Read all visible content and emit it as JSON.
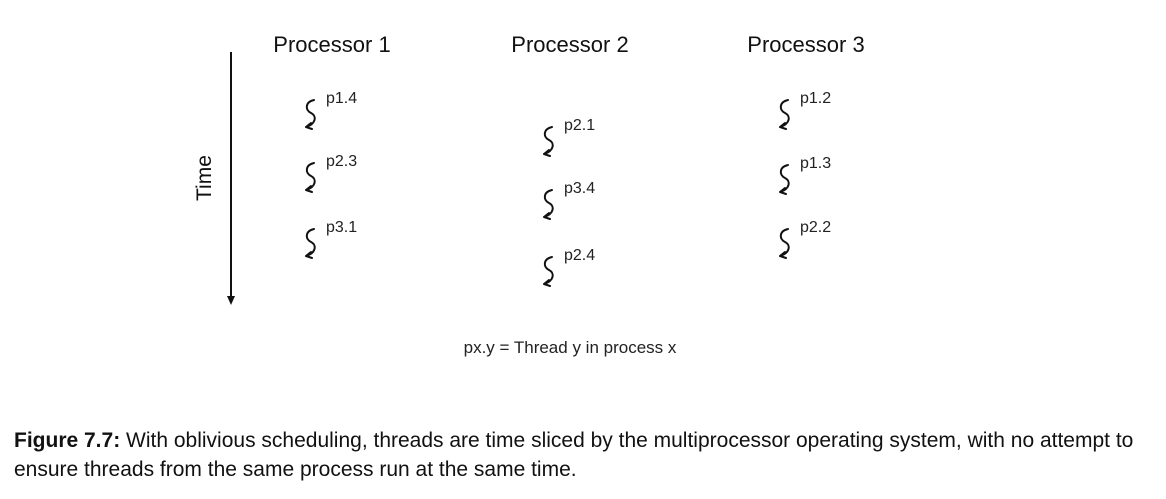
{
  "axis": {
    "label": "Time"
  },
  "processors": [
    {
      "title": "Processor 1",
      "threads": [
        "p1.4",
        "p2.3",
        "p3.1"
      ]
    },
    {
      "title": "Processor 2",
      "threads": [
        "p2.1",
        "p3.4",
        "p2.4"
      ]
    },
    {
      "title": "Processor 3",
      "threads": [
        "p1.2",
        "p1.3",
        "p2.2"
      ]
    }
  ],
  "legend": "px.y = Thread y in process x",
  "caption": {
    "label": "Figure 7.7:",
    "text": " With oblivious scheduling, threads are time sliced by the multiprocessor operating system, with no attempt to ensure threads from the same process run at the same time."
  },
  "icons": {
    "thread": "thread-squiggle-icon",
    "arrow": "down-arrow-icon"
  }
}
